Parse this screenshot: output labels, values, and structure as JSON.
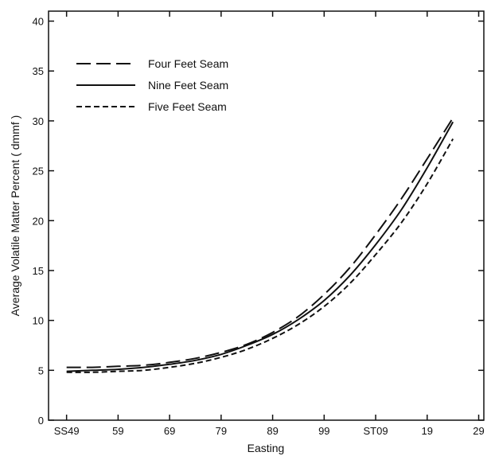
{
  "chart_data": {
    "type": "line",
    "title": "",
    "xlabel": "Easting",
    "ylabel": "Average Volatile Matter Percent ( dmmf )",
    "x_tick_labels": [
      "SS49",
      "59",
      "69",
      "79",
      "89",
      "99",
      "ST09",
      "19",
      "29"
    ],
    "x_ticks": [
      0,
      1,
      2,
      3,
      4,
      5,
      6,
      7,
      8
    ],
    "xlim": [
      -0.35,
      8.1
    ],
    "y_ticks": [
      0,
      5,
      10,
      15,
      20,
      25,
      30,
      35,
      40
    ],
    "ylim": [
      0,
      41
    ],
    "grid": false,
    "legend_position": "top-left",
    "x": [
      0,
      0.5,
      1,
      1.5,
      2,
      2.5,
      3,
      3.5,
      4,
      4.5,
      5,
      5.5,
      6,
      6.5,
      7,
      7.5
    ],
    "series": [
      {
        "name": "Four Feet Seam",
        "dash": "long-dash",
        "values": [
          5.3,
          5.3,
          5.4,
          5.5,
          5.8,
          6.2,
          6.8,
          7.6,
          8.8,
          10.4,
          12.6,
          15.3,
          18.6,
          22.2,
          26.2,
          30.3
        ]
      },
      {
        "name": "Nine Feet Seam",
        "dash": "solid",
        "values": [
          4.9,
          5.0,
          5.1,
          5.3,
          5.6,
          6.0,
          6.6,
          7.5,
          8.6,
          10.1,
          12.0,
          14.5,
          17.6,
          21.1,
          25.3,
          29.9
        ]
      },
      {
        "name": "Five Feet Seam",
        "dash": "short-dash",
        "values": [
          4.8,
          4.8,
          4.9,
          5.0,
          5.3,
          5.7,
          6.3,
          7.1,
          8.2,
          9.6,
          11.4,
          13.7,
          16.6,
          19.8,
          23.7,
          28.2
        ]
      }
    ]
  }
}
